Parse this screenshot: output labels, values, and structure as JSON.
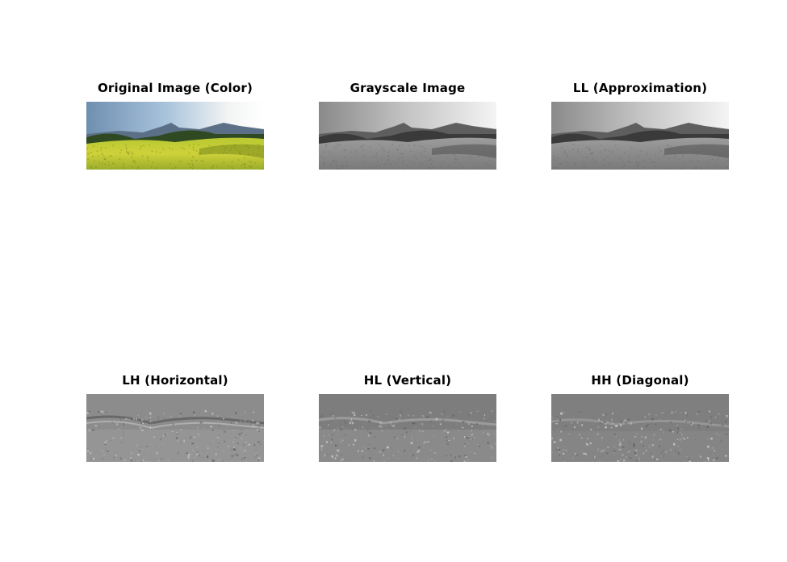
{
  "panels": [
    {
      "title": "Original Image (Color)",
      "kind": "color"
    },
    {
      "title": "Grayscale Image",
      "kind": "gray"
    },
    {
      "title": "LL (Approximation)",
      "kind": "gray"
    },
    {
      "title": "LH (Horizontal)",
      "kind": "detail"
    },
    {
      "title": "HL (Vertical)",
      "kind": "detail"
    },
    {
      "title": "HH (Diagonal)",
      "kind": "detail"
    }
  ]
}
